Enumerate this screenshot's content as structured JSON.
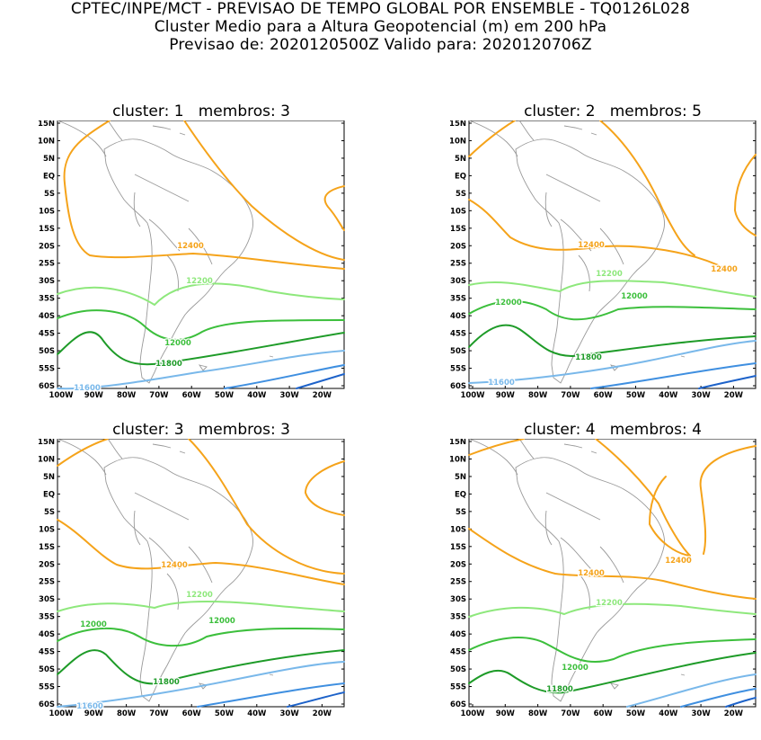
{
  "header": {
    "line1": "CPTEC/INPE/MCT - PREVISAO DE TEMPO GLOBAL POR ENSEMBLE - TQ0126L028",
    "line2": "Cluster Medio para a Altura Geopotencial (m) em 200 hPa",
    "line3": "Previsao de: 2020120500Z    Valido para: 2020120706Z"
  },
  "axes": {
    "lat_labels": [
      "15N",
      "10N",
      "5N",
      "EQ",
      "5S",
      "10S",
      "15S",
      "20S",
      "25S",
      "30S",
      "35S",
      "40S",
      "45S",
      "50S",
      "55S",
      "60S"
    ],
    "lon_labels": [
      "100W",
      "90W",
      "80W",
      "70W",
      "60W",
      "50W",
      "40W",
      "30W",
      "20W"
    ]
  },
  "colors": {
    "12400": "#f5a31a",
    "12200": "#8ee87c",
    "12000": "#3cbf3c",
    "11800": "#1e9b28",
    "11600": "#79b8ea",
    "11400": "#3f8fe0",
    "11200": "#1d62c9",
    "coast": "#999999"
  },
  "panels": [
    {
      "title": "cluster: 1   membros: 3",
      "labels": [
        {
          "text": "12400",
          "level": "12400"
        },
        {
          "text": "12200",
          "level": "12200"
        },
        {
          "text": "12000",
          "level": "12000"
        },
        {
          "text": "11800",
          "level": "11800"
        },
        {
          "text": "11600",
          "level": "11600"
        }
      ]
    },
    {
      "title": "cluster: 2   membros: 5",
      "labels": [
        {
          "text": "12400",
          "level": "12400"
        },
        {
          "text": "12400",
          "level": "12400"
        },
        {
          "text": "12200",
          "level": "12200"
        },
        {
          "text": "12000",
          "level": "12000"
        },
        {
          "text": "12000",
          "level": "12000"
        },
        {
          "text": "11800",
          "level": "11800"
        },
        {
          "text": "11600",
          "level": "11600"
        }
      ]
    },
    {
      "title": "cluster: 3   membros: 3",
      "labels": [
        {
          "text": "12400",
          "level": "12400"
        },
        {
          "text": "12200",
          "level": "12200"
        },
        {
          "text": "12000",
          "level": "12000"
        },
        {
          "text": "12000",
          "level": "12000"
        },
        {
          "text": "11800",
          "level": "11800"
        },
        {
          "text": "11600",
          "level": "11600"
        }
      ]
    },
    {
      "title": "cluster: 4   membros: 4",
      "labels": [
        {
          "text": "12400",
          "level": "12400"
        },
        {
          "text": "12400",
          "level": "12400"
        },
        {
          "text": "12200",
          "level": "12200"
        },
        {
          "text": "12000",
          "level": "12000"
        },
        {
          "text": "11800",
          "level": "11800"
        }
      ]
    }
  ]
}
